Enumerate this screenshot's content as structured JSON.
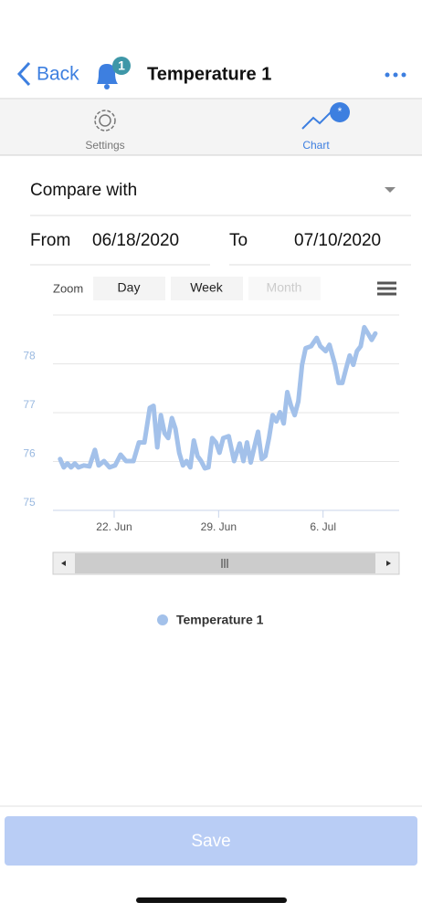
{
  "header": {
    "back": "Back",
    "badge": "1",
    "title": "Temperature 1"
  },
  "tabs": [
    {
      "label": "Settings"
    },
    {
      "label": "Chart",
      "badge": "*"
    }
  ],
  "form": {
    "compare": "Compare with",
    "from_label": "From",
    "from": "06/18/2020",
    "to_label": "To",
    "to": "07/10/2020"
  },
  "zoom": {
    "label": "Zoom",
    "buttons": [
      "Day",
      "Week",
      "Month"
    ]
  },
  "chart_data": {
    "type": "line",
    "x": [
      18.38,
      18.62,
      18.87,
      19.11,
      19.36,
      19.61,
      19.97,
      20.34,
      20.71,
      20.96,
      21.32,
      21.69,
      22.06,
      22.43,
      22.8,
      23.29,
      23.66,
      24.03,
      24.39,
      24.64,
      24.89,
      25.13,
      25.38,
      25.62,
      25.87,
      26.11,
      26.36,
      26.61,
      26.85,
      27.1,
      27.34,
      27.59,
      27.83,
      28.08,
      28.32,
      28.57,
      28.82,
      29.06,
      29.31,
      29.68,
      30.04,
      30.41,
      30.66,
      30.9,
      31.15,
      31.39,
      31.64,
      31.89,
      32.13,
      32.38,
      32.62,
      32.87,
      33.11,
      33.36,
      33.6,
      33.85,
      34.1,
      34.34,
      34.59,
      34.83,
      35.2,
      35.57,
      35.82,
      36.18,
      36.43,
      36.8,
      37.04,
      37.29,
      37.53,
      37.78,
      38.03,
      38.27,
      38.52,
      38.76,
      39.01,
      39.26,
      39.5
    ],
    "series": [
      {
        "name": "Temperature 1",
        "color": "#a3c1ea",
        "values": [
          76.05,
          75.88,
          75.96,
          75.88,
          75.96,
          75.88,
          75.92,
          75.9,
          76.24,
          75.92,
          76.01,
          75.88,
          75.92,
          76.14,
          76.01,
          76.01,
          76.39,
          76.39,
          77.1,
          77.14,
          76.29,
          76.95,
          76.58,
          76.48,
          76.89,
          76.67,
          76.18,
          75.92,
          76.01,
          75.88,
          76.43,
          76.11,
          76.01,
          75.86,
          75.88,
          76.48,
          76.39,
          76.18,
          76.48,
          76.52,
          76.01,
          76.37,
          76.01,
          76.39,
          75.98,
          76.29,
          76.61,
          76.05,
          76.11,
          76.48,
          76.95,
          76.82,
          77.01,
          76.78,
          77.42,
          77.14,
          76.95,
          77.23,
          77.98,
          78.32,
          78.36,
          78.53,
          78.36,
          78.26,
          78.39,
          77.98,
          77.61,
          77.61,
          77.89,
          78.17,
          77.98,
          78.26,
          78.36,
          78.75,
          78.62,
          78.49,
          78.62
        ]
      }
    ],
    "xlim": [
      17.9,
      41.1
    ],
    "xticks": [
      {
        "value": 22,
        "label": "22. Jun"
      },
      {
        "value": 29,
        "label": "29. Jun"
      },
      {
        "value": 36,
        "label": "6. Jul"
      }
    ],
    "ylim": [
      75,
      79
    ],
    "yticks": [
      75,
      76,
      77,
      78
    ],
    "grid": true,
    "legend": "bottom"
  },
  "save": "Save"
}
